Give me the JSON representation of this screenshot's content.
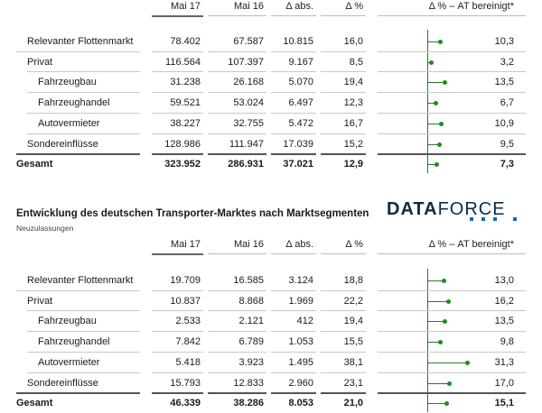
{
  "chart_data": [
    {
      "type": "table",
      "subtitle": "",
      "columns": [
        "Mai 17",
        "Mai 16",
        "Δ abs.",
        "Δ %",
        "Δ % – AT bereinigt*"
      ],
      "rows": [
        {
          "label": "Relevanter Flottenmarkt",
          "level": 0,
          "values": [
            "78.402",
            "67.587",
            "10.815",
            "16,0"
          ],
          "adj": 10.3,
          "adj_label": "10,3"
        },
        {
          "label": "Privat",
          "level": 0,
          "values": [
            "116.564",
            "107.397",
            "9.167",
            "8,5"
          ],
          "adj": 3.2,
          "adj_label": "3,2"
        },
        {
          "label": "Fahrzeugbau",
          "level": 1,
          "values": [
            "31.238",
            "26.168",
            "5.070",
            "19,4"
          ],
          "adj": 13.5,
          "adj_label": "13,5"
        },
        {
          "label": "Fahrzeughandel",
          "level": 1,
          "values": [
            "59.521",
            "53.024",
            "6.497",
            "12,3"
          ],
          "adj": 6.7,
          "adj_label": "6,7"
        },
        {
          "label": "Autovermieter",
          "level": 1,
          "values": [
            "38.227",
            "32.755",
            "5.472",
            "16,7"
          ],
          "adj": 10.9,
          "adj_label": "10,9"
        },
        {
          "label": "Sondereinflüsse",
          "level": 0,
          "values": [
            "128.986",
            "111.947",
            "17.039",
            "15,2"
          ],
          "adj": 9.5,
          "adj_label": "9,5"
        },
        {
          "label": "Gesamt",
          "level": 0,
          "bold": true,
          "values": [
            "323.952",
            "286.931",
            "37.021",
            "12,9"
          ],
          "adj": 7.3,
          "adj_label": "7,3"
        }
      ]
    },
    {
      "type": "table",
      "title": "Entwicklung des deutschen Transporter-Marktes nach Marktsegmenten",
      "subtitle": "Neuzulassungen",
      "columns": [
        "Mai 17",
        "Mai 16",
        "Δ abs.",
        "Δ %",
        "Δ % – AT bereinigt*"
      ],
      "rows": [
        {
          "label": "Relevanter Flottenmarkt",
          "level": 0,
          "values": [
            "19.709",
            "16.585",
            "3.124",
            "18,8"
          ],
          "adj": 13.0,
          "adj_label": "13,0"
        },
        {
          "label": "Privat",
          "level": 0,
          "values": [
            "10.837",
            "8.868",
            "1.969",
            "22,2"
          ],
          "adj": 16.2,
          "adj_label": "16,2"
        },
        {
          "label": "Fahrzeugbau",
          "level": 1,
          "values": [
            "2.533",
            "2.121",
            "412",
            "19,4"
          ],
          "adj": 13.5,
          "adj_label": "13,5"
        },
        {
          "label": "Fahrzeughandel",
          "level": 1,
          "values": [
            "7.842",
            "6.789",
            "1.053",
            "15,5"
          ],
          "adj": 9.8,
          "adj_label": "9,8"
        },
        {
          "label": "Autovermieter",
          "level": 1,
          "values": [
            "5.418",
            "3.923",
            "1.495",
            "38,1"
          ],
          "adj": 31.3,
          "adj_label": "31,3"
        },
        {
          "label": "Sondereinflüsse",
          "level": 0,
          "values": [
            "15.793",
            "12.833",
            "2.960",
            "23,1"
          ],
          "adj": 17.0,
          "adj_label": "17,0"
        },
        {
          "label": "Gesamt",
          "level": 0,
          "bold": true,
          "values": [
            "46.339",
            "38.286",
            "8.053",
            "21,0"
          ],
          "adj": 15.1,
          "adj_label": "15,1"
        }
      ]
    }
  ],
  "logo": {
    "part1": "DATA",
    "part2": "FORCE",
    "accent_color": "#1b66b0"
  },
  "colors": {
    "dot": "#1f8a1f",
    "line": "#2a7a2a",
    "text": "#1a1a1a"
  }
}
